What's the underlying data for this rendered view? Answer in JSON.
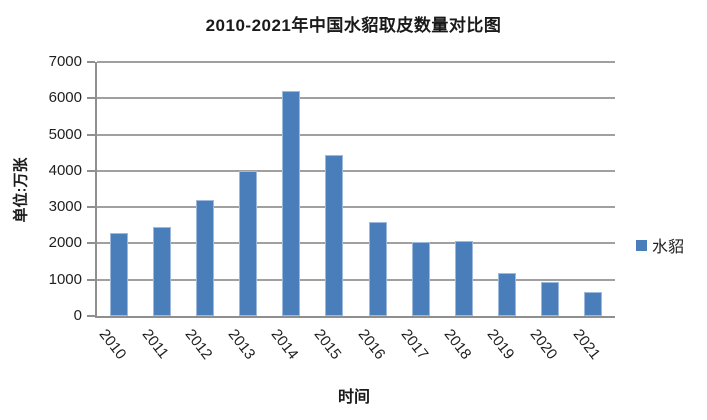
{
  "chart_data": {
    "type": "bar",
    "title": "2010-2021年中国水貂取皮数量对比图",
    "categories": [
      "2010",
      "2011",
      "2012",
      "2013",
      "2014",
      "2015",
      "2016",
      "2017",
      "2018",
      "2019",
      "2020",
      "2021"
    ],
    "series": [
      {
        "name": "水貂",
        "values": [
          2300,
          2450,
          3200,
          4000,
          6200,
          4450,
          2600,
          2050,
          2070,
          1180,
          930,
          675
        ]
      }
    ],
    "xlabel": "时间",
    "ylabel": "单位:万张",
    "ylim": [
      0,
      7000
    ],
    "ytick_step": 1000,
    "yticks": [
      0,
      1000,
      2000,
      3000,
      4000,
      5000,
      6000,
      7000
    ],
    "grid": true,
    "legend_position": "right",
    "bar_color": "#4a7ebb",
    "bar_border_color": "#9db9dc",
    "gridline_color": "#a0a0a0",
    "axis_color": "#8f8f8f"
  }
}
